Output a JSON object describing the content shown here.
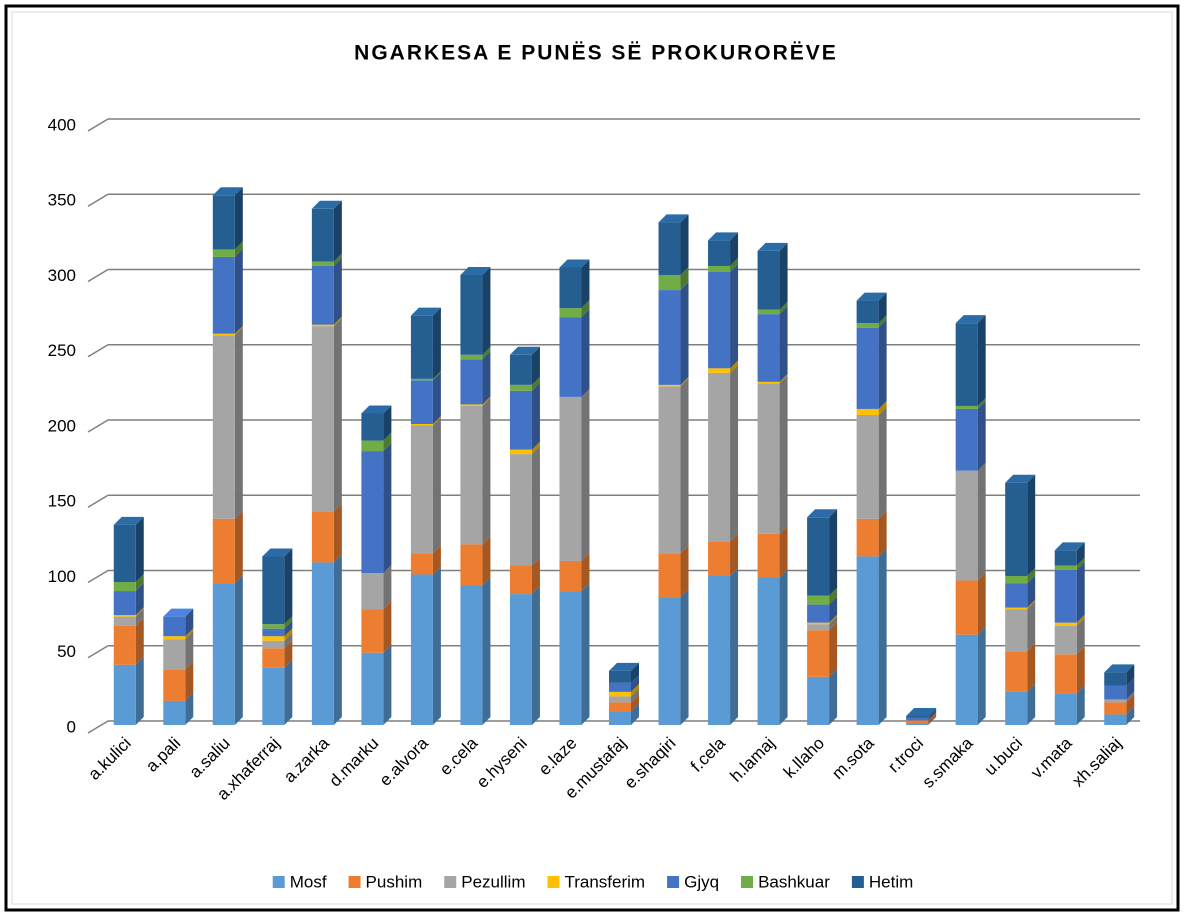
{
  "chart_data": {
    "type": "bar3d_stacked",
    "title": "NGARKESA E PUNËS SË PROKURORËVE",
    "categories": [
      "a.kulici",
      "a.pali",
      "a.saliu",
      "a.xhaferraj",
      "a.zarka",
      "d.marku",
      "e.alvora",
      "e.cela",
      "e.hyseni",
      "e.laze",
      "e.mustafaj",
      "e.shaqiri",
      "f.cela",
      "h.lamaj",
      "k.llaho",
      "m.sota",
      "r.troci",
      "s.smaka",
      "u.buci",
      "v.mata",
      "xh.saliaj"
    ],
    "series": [
      {
        "name": "Mosf",
        "color": "#5b9bd5",
        "values": [
          40,
          16,
          94,
          38,
          108,
          48,
          100,
          93,
          87,
          89,
          9,
          85,
          99,
          98,
          32,
          112,
          1,
          60,
          22,
          21,
          7
        ]
      },
      {
        "name": "Pushim",
        "color": "#ed7d31",
        "values": [
          26,
          21,
          43,
          13,
          34,
          29,
          14,
          27,
          19,
          20,
          6,
          29,
          23,
          29,
          31,
          25,
          2,
          36,
          27,
          26,
          8
        ]
      },
      {
        "name": "Pezullim",
        "color": "#a5a5a5",
        "values": [
          6,
          20,
          122,
          5,
          123,
          24,
          85,
          92,
          74,
          109,
          4,
          111,
          112,
          100,
          4,
          69,
          0,
          73,
          28,
          19,
          2
        ]
      },
      {
        "name": "Transferim",
        "color": "#ffc000",
        "values": [
          1,
          2,
          1,
          3,
          1,
          0,
          1,
          1,
          3,
          0,
          3,
          1,
          3,
          1,
          1,
          4,
          0,
          0,
          1,
          2,
          0
        ]
      },
      {
        "name": "Gjyq",
        "color": "#4472c4",
        "values": [
          16,
          13,
          51,
          5,
          39,
          81,
          29,
          30,
          39,
          53,
          6,
          63,
          64,
          45,
          12,
          54,
          2,
          41,
          16,
          35,
          9
        ]
      },
      {
        "name": "Bashkuar",
        "color": "#70ad47",
        "values": [
          6,
          0,
          5,
          3,
          3,
          7,
          1,
          3,
          4,
          6,
          0,
          10,
          4,
          3,
          6,
          3,
          0,
          2,
          5,
          3,
          0
        ]
      },
      {
        "name": "Hetim",
        "color": "#255e91",
        "values": [
          38,
          0,
          36,
          45,
          35,
          18,
          42,
          53,
          20,
          27,
          8,
          35,
          17,
          39,
          52,
          15,
          1,
          55,
          62,
          10,
          9
        ]
      }
    ],
    "ylim": [
      0,
      400
    ],
    "yticks": [
      0,
      50,
      100,
      150,
      200,
      250,
      300,
      350,
      400
    ],
    "grid": true,
    "legend": "bottom"
  }
}
